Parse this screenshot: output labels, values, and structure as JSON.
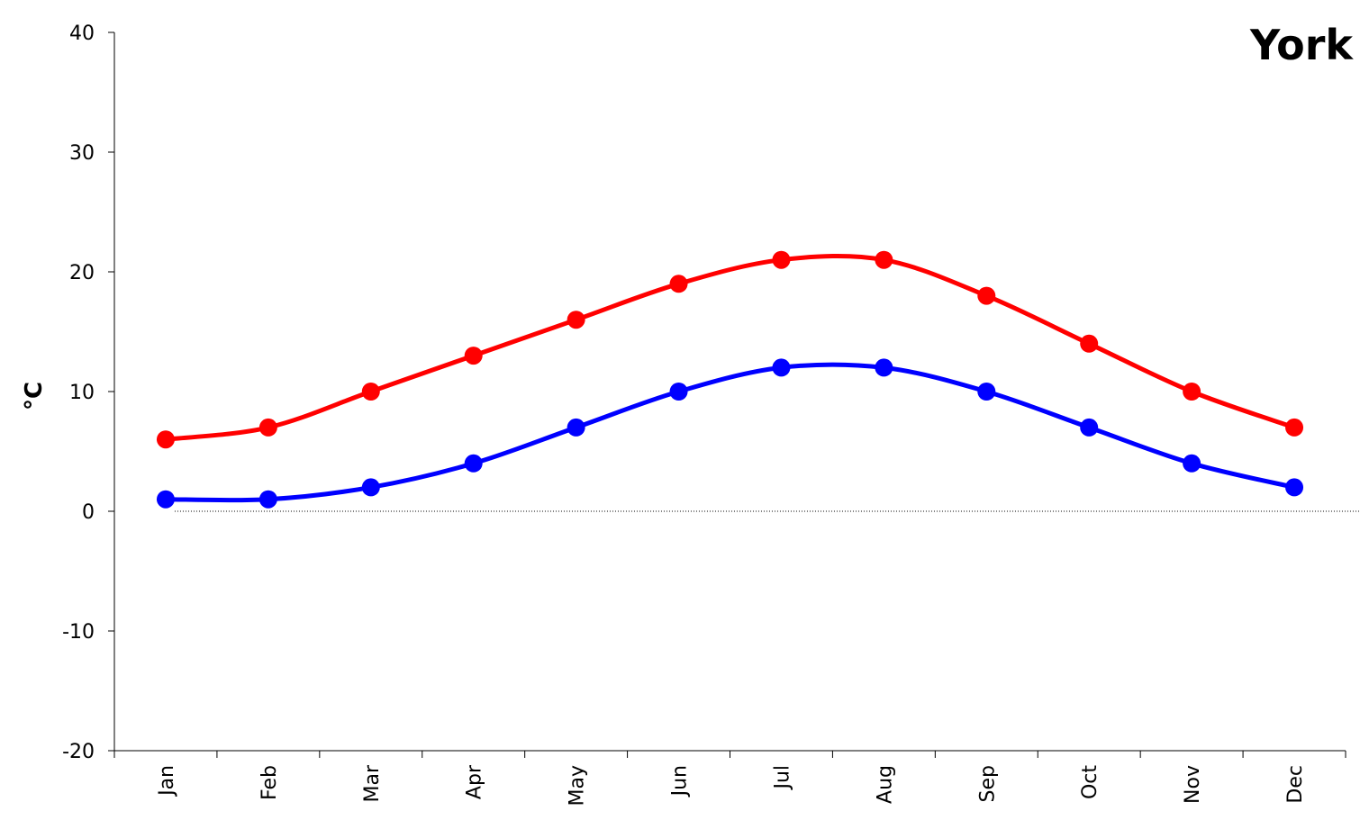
{
  "chart_data": {
    "type": "line",
    "title": "York",
    "ylabel": "°C",
    "xlabel": "",
    "categories": [
      "Jan",
      "Feb",
      "Mar",
      "Apr",
      "May",
      "Jun",
      "Jul",
      "Aug",
      "Sep",
      "Oct",
      "Nov",
      "Dec"
    ],
    "ylim": [
      -20,
      40
    ],
    "yticks": [
      40,
      30,
      20,
      10,
      0,
      -10,
      -20
    ],
    "grid": false,
    "series": [
      {
        "values": [
          6,
          7,
          10,
          13,
          16,
          19,
          21,
          21,
          18,
          14,
          10,
          7
        ],
        "color": "#ff0000"
      },
      {
        "values": [
          1,
          1,
          2,
          4,
          7,
          10,
          12,
          12,
          10,
          7,
          4,
          2
        ],
        "color": "#0000ff"
      }
    ],
    "zero_line": true
  }
}
